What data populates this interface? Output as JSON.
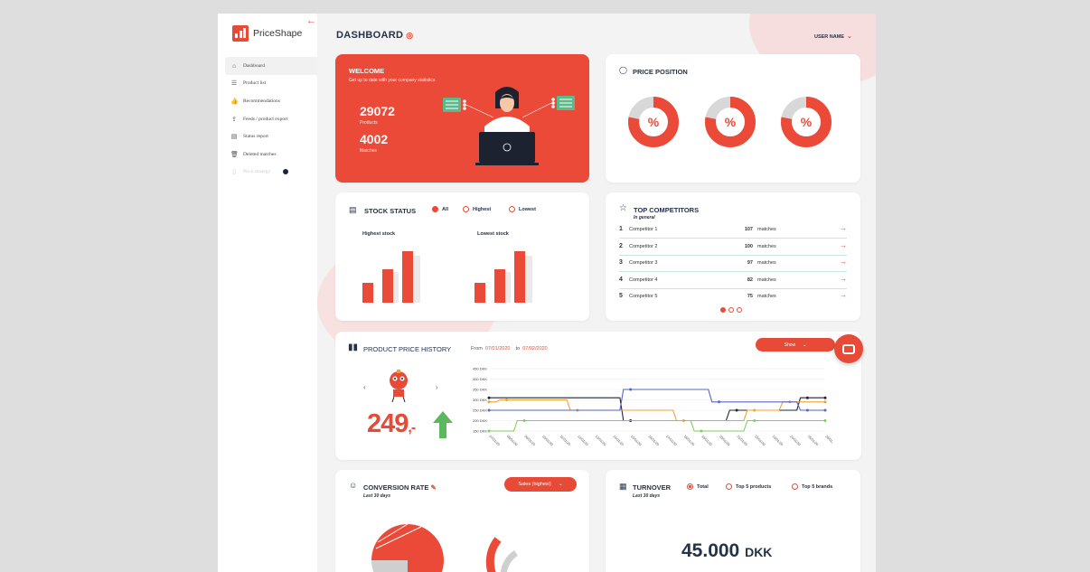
{
  "app": {
    "name": "PriceShape"
  },
  "sidebar": {
    "items": [
      {
        "label": "Dashboard",
        "icon": "home-icon",
        "glyph": "⌂"
      },
      {
        "label": "Product list",
        "icon": "list-icon",
        "glyph": "☰"
      },
      {
        "label": "Recommendations",
        "icon": "thumbs-up-icon",
        "glyph": "👍"
      },
      {
        "label": "Feeds / product export",
        "icon": "export-icon",
        "glyph": "⇪"
      },
      {
        "label": "Status report",
        "icon": "report-icon",
        "glyph": "▤"
      },
      {
        "label": "Deleted matches",
        "icon": "trash-icon",
        "glyph": "🗑"
      },
      {
        "label": "Price strategy",
        "icon": "strategy-icon",
        "glyph": "▯"
      }
    ]
  },
  "header": {
    "title": "DASHBOARD",
    "user": "USER NAME"
  },
  "welcome": {
    "title": "WELCOME",
    "subtitle": "Get up to date with your company statistics",
    "stats": [
      {
        "value": "29072",
        "label": "Products"
      },
      {
        "value": "4002",
        "label": "Matches"
      }
    ]
  },
  "price_position": {
    "title": "PRICE POSITION",
    "donut_label": "%",
    "fractions": [
      0.78,
      0.78,
      0.78
    ]
  },
  "stock_status": {
    "title": "STOCK STATUS",
    "filters": [
      {
        "label": "All",
        "selected": true
      },
      {
        "label": "Highest",
        "selected": false
      },
      {
        "label": "Lowest",
        "selected": false
      }
    ],
    "charts": [
      {
        "label": "Highest stock"
      },
      {
        "label": "Lowest stock"
      }
    ]
  },
  "competitors": {
    "title": "TOP COMPETITORS",
    "subtitle": "In general",
    "rows": [
      {
        "rank": "1",
        "name": "Competitor 1",
        "count": "107",
        "unit": "matches"
      },
      {
        "rank": "2",
        "name": "Competitor 2",
        "count": "100",
        "unit": "matches"
      },
      {
        "rank": "3",
        "name": "Competitor 3",
        "count": "97",
        "unit": "matches"
      },
      {
        "rank": "4",
        "name": "Competitor 4",
        "count": "82",
        "unit": "matches"
      },
      {
        "rank": "5",
        "name": "Competitor 5",
        "count": "75",
        "unit": "matches"
      }
    ],
    "pages": 3,
    "current_page": 1
  },
  "price_history": {
    "title": "PRODUCT PRICE HISTORY",
    "from_label": "From",
    "from": "07/01/2020",
    "to_label": "to",
    "to": "07/02/2020",
    "show_label": "Show",
    "price": "249",
    "price_suffix": ",-",
    "colors": {
      "black": "#1f2430",
      "orange": "#f0a030",
      "blue": "#5664c8",
      "green": "#7ccf5c"
    }
  },
  "conversion": {
    "title": "CONVERSION RATE",
    "subtitle": "Last 30 days",
    "dropdown": "Sales (highest)"
  },
  "turnover": {
    "title": "TURNOVER",
    "subtitle": "Last 30 days",
    "filters": [
      {
        "label": "Total",
        "selected": true
      },
      {
        "label": "Top 5 products",
        "selected": false
      },
      {
        "label": "Top 5 brands",
        "selected": false
      }
    ],
    "value": "45.000",
    "currency": "DKK"
  },
  "chart_data": {
    "type": "line",
    "x": [
      "07/01/20",
      "08/01/20",
      "09/01/20",
      "10/01/20",
      "11/01/20",
      "12/01/20",
      "13/01/20",
      "14/01/20",
      "15/01/20",
      "16/01/20",
      "17/01/20",
      "18/01/20",
      "19/01/20",
      "20/01/20",
      "21/01/20",
      "22/01/20",
      "23/01/20",
      "24/01/20",
      "25/01/20",
      "26/01/20"
    ],
    "y_ticks": [
      "450 DKK",
      "400 DKK",
      "350 DKK",
      "300 DKK",
      "250 DKK",
      "200 DKK",
      "150 DKK"
    ],
    "ylim": [
      150,
      450
    ],
    "series": [
      {
        "values": [
          310,
          310,
          310,
          310,
          310,
          310,
          310,
          310,
          200,
          200,
          200,
          200,
          200,
          200,
          250,
          250,
          250,
          250,
          310,
          310
        ],
        "color": "#1f2430"
      },
      {
        "values": [
          290,
          300,
          300,
          300,
          300,
          250,
          250,
          250,
          250,
          250,
          250,
          200,
          200,
          200,
          200,
          250,
          250,
          290,
          290,
          290
        ],
        "color": "#f0a030"
      },
      {
        "values": [
          250,
          250,
          250,
          250,
          250,
          250,
          250,
          250,
          350,
          350,
          350,
          350,
          350,
          290,
          290,
          290,
          290,
          290,
          250,
          250
        ],
        "color": "#5664c8"
      },
      {
        "values": [
          150,
          150,
          200,
          200,
          200,
          200,
          200,
          200,
          200,
          200,
          200,
          200,
          150,
          150,
          150,
          200,
          200,
          200,
          200,
          200
        ],
        "color": "#7ccf5c"
      }
    ]
  }
}
